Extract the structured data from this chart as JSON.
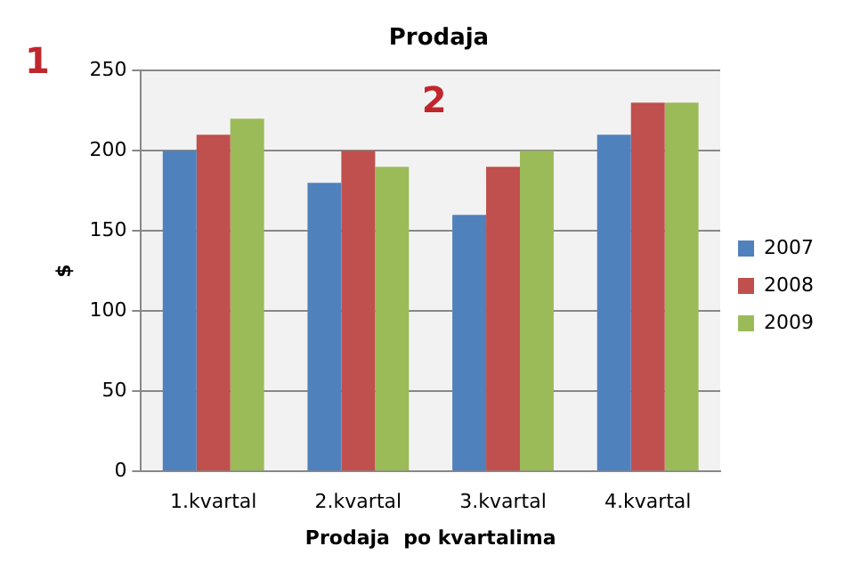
{
  "chart_data": {
    "type": "bar",
    "title": "Prodaja",
    "xlabel": "Prodaja  po kvartalima",
    "ylabel": "$",
    "categories": [
      "1.kvartal",
      "2.kvartal",
      "3.kvartal",
      "4.kvartal"
    ],
    "series": [
      {
        "name": "2007",
        "color": "#4f81bd",
        "values": [
          200,
          180,
          160,
          210
        ]
      },
      {
        "name": "2008",
        "color": "#c0504d",
        "values": [
          210,
          200,
          190,
          230
        ]
      },
      {
        "name": "2009",
        "color": "#9bbb59",
        "values": [
          220,
          190,
          200,
          230
        ]
      }
    ],
    "ylim": [
      0,
      250
    ],
    "yticks": [
      0,
      50,
      100,
      150,
      200,
      250
    ],
    "grid": "y",
    "legend": "right",
    "annotations": [
      "1",
      "2"
    ]
  }
}
